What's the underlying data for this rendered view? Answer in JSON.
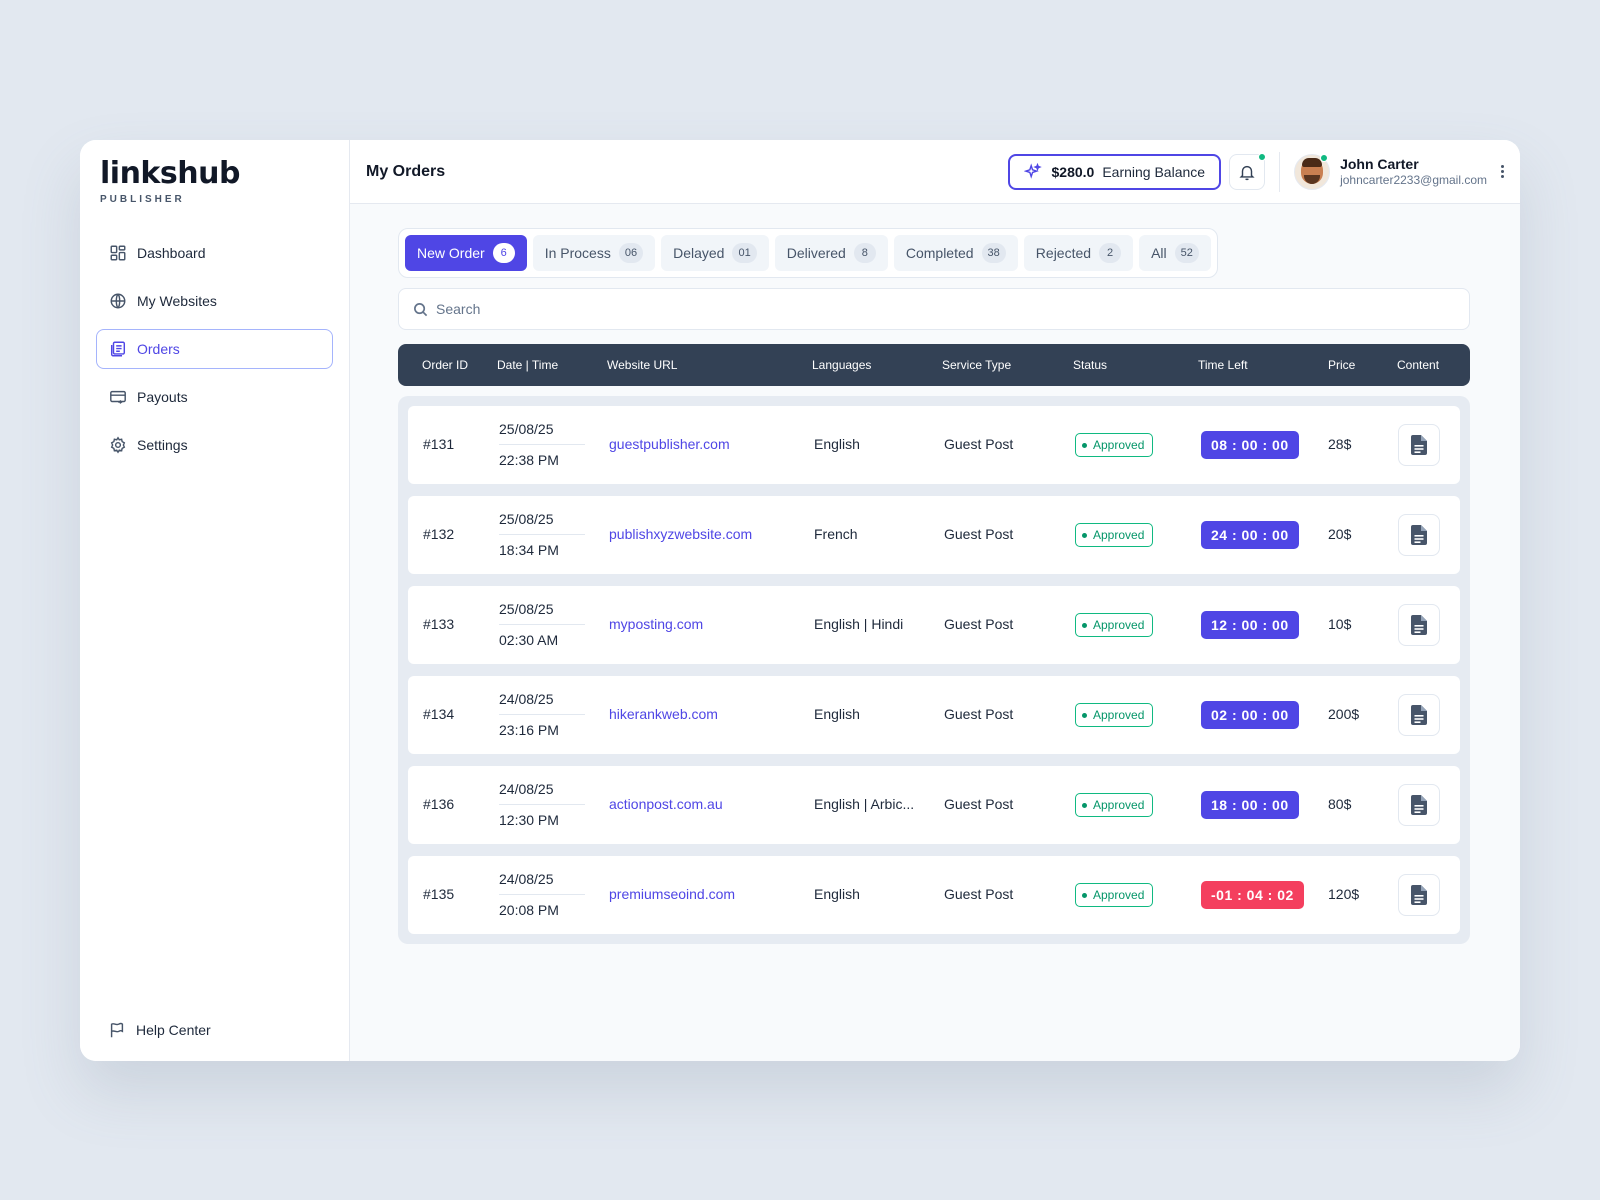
{
  "brand": {
    "name": "linkshub",
    "subtitle": "PUBLISHER"
  },
  "sidebar": {
    "items": [
      {
        "label": "Dashboard",
        "icon": "dashboard-icon"
      },
      {
        "label": "My Websites",
        "icon": "globe-www-icon"
      },
      {
        "label": "Orders",
        "icon": "orders-icon",
        "active": true
      },
      {
        "label": "Payouts",
        "icon": "card-icon"
      },
      {
        "label": "Settings",
        "icon": "gear-icon"
      }
    ],
    "help": {
      "label": "Help Center",
      "icon": "flag-icon"
    }
  },
  "header": {
    "title": "My Orders",
    "balance_amount": "$280.0",
    "balance_label": "Earning Balance",
    "user_name": "John Carter",
    "user_email": "johncarter2233@gmail.com"
  },
  "tabs": [
    {
      "label": "New Order",
      "count": "6",
      "active": true
    },
    {
      "label": "In Process",
      "count": "06"
    },
    {
      "label": "Delayed",
      "count": "01"
    },
    {
      "label": "Delivered",
      "count": "8"
    },
    {
      "label": "Completed",
      "count": "38"
    },
    {
      "label": "Rejected",
      "count": "2"
    },
    {
      "label": "All",
      "count": "52"
    }
  ],
  "search": {
    "placeholder": "Search",
    "value": ""
  },
  "table": {
    "columns": [
      "Order ID",
      "Date | Time",
      "Website URL",
      "Languages",
      "Service Type",
      "Status",
      "Time Left",
      "Price",
      "Content"
    ],
    "rows": [
      {
        "id": "#131",
        "date": "25/08/25",
        "time": "22:38 PM",
        "url": "guestpublisher.com",
        "lang": "English",
        "service": "Guest Post",
        "status": "Approved",
        "time_left": "08 : 00 : 00",
        "overdue": false,
        "price": "28$"
      },
      {
        "id": "#132",
        "date": "25/08/25",
        "time": "18:34 PM",
        "url": "publishxyzwebsite.com",
        "lang": "French",
        "service": "Guest Post",
        "status": "Approved",
        "time_left": "24 : 00 : 00",
        "overdue": false,
        "price": "20$"
      },
      {
        "id": "#133",
        "date": "25/08/25",
        "time": "02:30 AM",
        "url": "myposting.com",
        "lang": "English | Hindi",
        "service": "Guest Post",
        "status": "Approved",
        "time_left": "12 : 00 : 00",
        "overdue": false,
        "price": "10$"
      },
      {
        "id": "#134",
        "date": "24/08/25",
        "time": "23:16 PM",
        "url": "hikerankweb.com",
        "lang": "English",
        "service": "Guest Post",
        "status": "Approved",
        "time_left": "02 : 00 : 00",
        "overdue": false,
        "price": "200$"
      },
      {
        "id": "#136",
        "date": "24/08/25",
        "time": "12:30 PM",
        "url": "actionpost.com.au",
        "lang": "English | Arbic...",
        "service": "Guest Post",
        "status": "Approved",
        "time_left": "18 : 00 : 00",
        "overdue": false,
        "price": "80$"
      },
      {
        "id": "#135",
        "date": "24/08/25",
        "time": "20:08 PM",
        "url": "premiumseoind.com",
        "lang": "English",
        "service": "Guest Post",
        "status": "Approved",
        "time_left": "-01 : 04 : 02",
        "overdue": true,
        "price": "120$"
      }
    ]
  },
  "colors": {
    "accent": "#4f46e5",
    "header_bg": "#334155",
    "approved": "#10b981",
    "overdue": "#f43f5e",
    "notification_dot": "#10b981"
  }
}
